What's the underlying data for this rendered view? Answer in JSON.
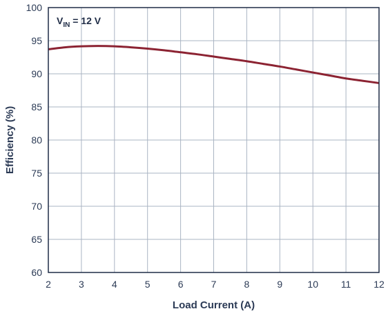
{
  "chart_data": {
    "type": "line",
    "xlabel": "Load Current (A)",
    "ylabel": "Efficiency (%)",
    "xlim": [
      2,
      12
    ],
    "ylim": [
      60,
      100
    ],
    "x_ticks": [
      "2",
      "3",
      "4",
      "5",
      "6",
      "7",
      "8",
      "9",
      "10",
      "11",
      "12"
    ],
    "y_ticks": [
      "60",
      "65",
      "70",
      "75",
      "80",
      "85",
      "90",
      "95",
      "100"
    ],
    "grid": true,
    "annotation": {
      "main": "V",
      "sub": "IN",
      "rest": " = 12 V",
      "position": "top-left"
    },
    "series": [
      {
        "color": "#8c2332",
        "x": [
          2.0,
          2.5,
          3.0,
          3.5,
          4.0,
          4.5,
          5.0,
          5.5,
          6.0,
          6.5,
          7.0,
          7.5,
          8.0,
          8.5,
          9.0,
          9.5,
          10.0,
          10.5,
          11.0,
          11.5,
          12.0
        ],
        "y": [
          93.7,
          94.0,
          94.15,
          94.2,
          94.15,
          94.0,
          93.8,
          93.55,
          93.25,
          92.95,
          92.6,
          92.25,
          91.9,
          91.5,
          91.1,
          90.65,
          90.2,
          89.75,
          89.3,
          88.95,
          88.6
        ]
      }
    ]
  }
}
